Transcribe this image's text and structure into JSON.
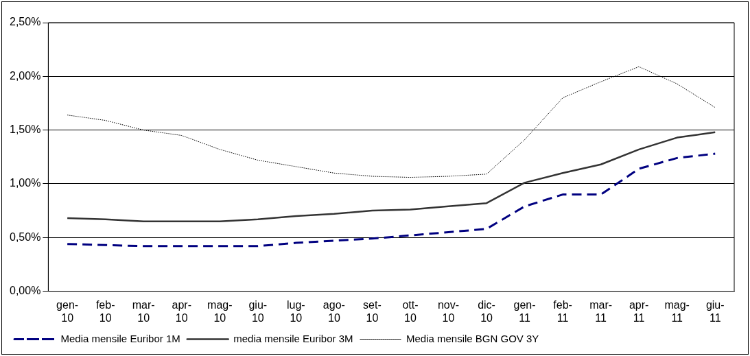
{
  "chart_data": {
    "type": "line",
    "categories": [
      "gen-10",
      "feb-10",
      "mar-10",
      "apr-10",
      "mag-10",
      "giu-10",
      "lug-10",
      "ago-10",
      "set-10",
      "ott-10",
      "nov-10",
      "dic-10",
      "gen-11",
      "feb-11",
      "mar-11",
      "apr-11",
      "mag-11",
      "giu-11"
    ],
    "series": [
      {
        "name": "Media mensile Euribor 1M",
        "color": "#000080",
        "line_style": "dashed",
        "values": [
          0.44,
          0.43,
          0.42,
          0.42,
          0.42,
          0.42,
          0.45,
          0.47,
          0.49,
          0.52,
          0.55,
          0.58,
          0.79,
          0.9,
          0.9,
          1.14,
          1.24,
          1.28
        ]
      },
      {
        "name": "media mensile Euribor 3M",
        "color": "#333333",
        "line_style": "solid",
        "values": [
          0.68,
          0.67,
          0.65,
          0.65,
          0.65,
          0.67,
          0.7,
          0.72,
          0.75,
          0.76,
          0.79,
          0.82,
          1.01,
          1.1,
          1.18,
          1.32,
          1.43,
          1.48
        ]
      },
      {
        "name": "Media mensile BGN GOV 3Y",
        "color": "#000000",
        "line_style": "dotted",
        "values": [
          1.64,
          1.59,
          1.5,
          1.45,
          1.32,
          1.22,
          1.16,
          1.1,
          1.07,
          1.06,
          1.07,
          1.09,
          1.41,
          1.8,
          1.95,
          2.09,
          1.93,
          1.71
        ]
      }
    ],
    "ylim": [
      0,
      2.5
    ],
    "yticks": [
      {
        "value": 0,
        "label": "0,00%"
      },
      {
        "value": 0.5,
        "label": "0,50%"
      },
      {
        "value": 1,
        "label": "1,00%"
      },
      {
        "value": 1.5,
        "label": "1,50%"
      },
      {
        "value": 2,
        "label": "2,00%"
      },
      {
        "value": 2.5,
        "label": "2,50%"
      }
    ],
    "grid": "y",
    "legend": "bottom",
    "marker": "none"
  }
}
